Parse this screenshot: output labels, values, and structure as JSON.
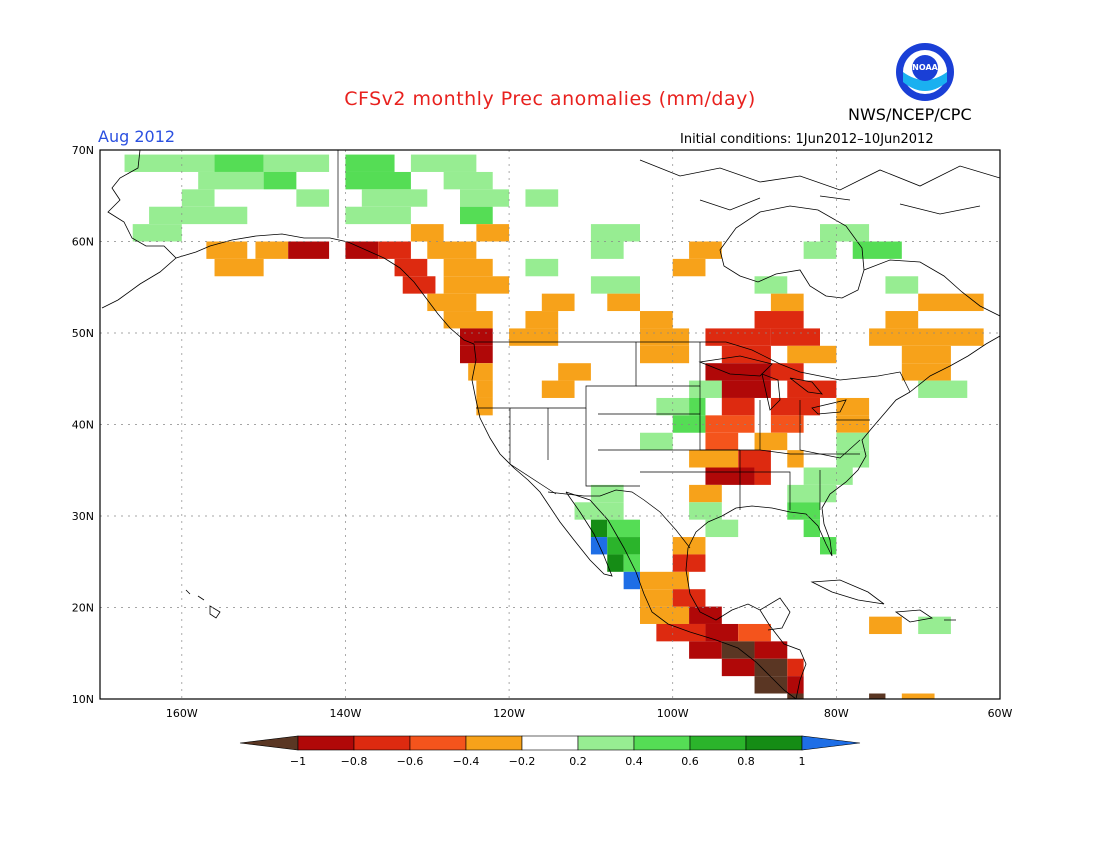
{
  "title": "CFSv2 monthly Prec anomalies (mm/day)",
  "month": "Aug 2012",
  "initial_conditions": "Initial conditions: 1Jun2012–10Jun2012",
  "agency": "NWS/NCEP/CPC",
  "logo_text": "NOAA",
  "map": {
    "lat_labels": [
      "70N",
      "60N",
      "50N",
      "40N",
      "30N",
      "20N",
      "10N"
    ],
    "lon_labels": [
      "160W",
      "140W",
      "120W",
      "100W",
      "80W",
      "60W"
    ],
    "extent": {
      "lon_min": -170,
      "lon_max": -60,
      "lat_min": 10,
      "lat_max": 70
    }
  },
  "colorbar": {
    "labels": [
      "−1",
      "−0.8",
      "−0.6",
      "−0.4",
      "−0.2",
      "0.2",
      "0.4",
      "0.6",
      "0.8",
      "1"
    ],
    "colors": [
      "#5a3623",
      "#b00808",
      "#dd2a10",
      "#f4541c",
      "#f7a21a",
      "#ffffff",
      "#97ed92",
      "#55dd55",
      "#2bb42b",
      "#158c15",
      "#1e6ee6"
    ]
  },
  "colors": {
    "title": "#e8211e",
    "month": "#2b50e0"
  }
}
